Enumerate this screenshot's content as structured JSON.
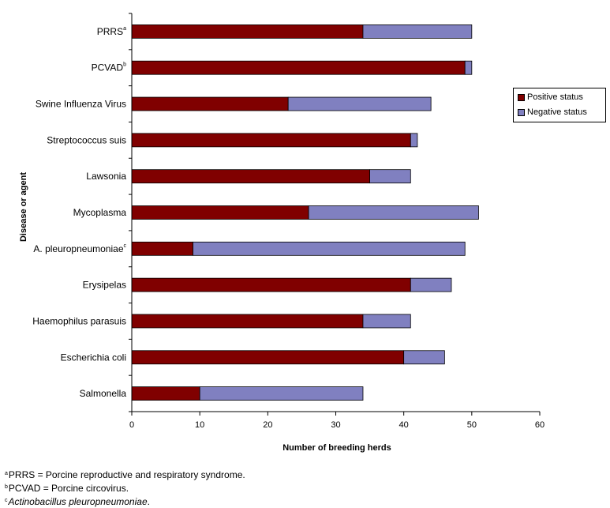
{
  "chart_data": {
    "type": "bar",
    "orientation": "horizontal",
    "stacked": true,
    "title": "",
    "xlabel": "Number of breeding herds",
    "ylabel": "Disease or agent",
    "xlim": [
      0,
      60
    ],
    "xticks": [
      "0",
      "10",
      "20",
      "30",
      "40",
      "50",
      "60"
    ],
    "grid": false,
    "legend_position": "right",
    "categories": [
      {
        "label": "PRRS",
        "sup": "a"
      },
      {
        "label": "PCVAD",
        "sup": "b"
      },
      {
        "label": "Swine Influenza Virus",
        "sup": ""
      },
      {
        "label": "Streptococcus suis",
        "sup": ""
      },
      {
        "label": "Lawsonia",
        "sup": ""
      },
      {
        "label": "Mycoplasma",
        "sup": ""
      },
      {
        "label": "A. pleuropneumoniae",
        "sup": "c"
      },
      {
        "label": "Erysipelas",
        "sup": ""
      },
      {
        "label": "Haemophilus parasuis",
        "sup": ""
      },
      {
        "label": "Escherichia coli",
        "sup": ""
      },
      {
        "label": "Salmonella",
        "sup": ""
      }
    ],
    "series": [
      {
        "name": "Positive status",
        "color": "#800000",
        "values": [
          34,
          49,
          23,
          41,
          35,
          26,
          9,
          41,
          34,
          40,
          10
        ]
      },
      {
        "name": "Negative status",
        "color": "#8080c0",
        "values": [
          16,
          1,
          21,
          1,
          6,
          25,
          40,
          6,
          7,
          6,
          24
        ]
      }
    ]
  },
  "legend": {
    "items": [
      {
        "label": "Positive status",
        "color": "#800000"
      },
      {
        "label": "Negative status",
        "color": "#8080c0"
      }
    ]
  },
  "footnotes": [
    {
      "mark": "a",
      "text": "PRRS = Porcine reproductive and respiratory syndrome.",
      "italic": ""
    },
    {
      "mark": "b",
      "text": "PCVAD = Porcine circovirus.",
      "italic": ""
    },
    {
      "mark": "c",
      "italic": "Actinobacillus pleuropneumoniae",
      "text": "."
    }
  ]
}
